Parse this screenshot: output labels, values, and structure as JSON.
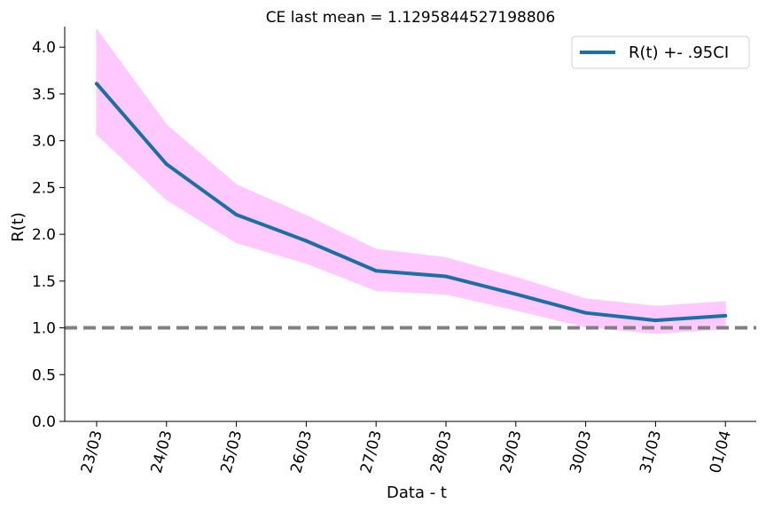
{
  "chart_data": {
    "type": "line",
    "title": "CE last mean = 1.1295844527198806",
    "xlabel": "Data - t",
    "ylabel": "R(t)",
    "categories": [
      "23/03",
      "24/03",
      "25/03",
      "26/03",
      "27/03",
      "28/03",
      "29/03",
      "30/03",
      "31/03",
      "01/04"
    ],
    "series": [
      {
        "name": "R(t) +- .95CI",
        "color": "#1a6fa8",
        "values": [
          3.61,
          2.75,
          2.21,
          1.93,
          1.61,
          1.55,
          1.36,
          1.16,
          1.08,
          1.13
        ],
        "ci_upper": [
          4.19,
          3.17,
          2.53,
          2.2,
          1.84,
          1.75,
          1.54,
          1.31,
          1.23,
          1.28
        ],
        "ci_lower": [
          3.07,
          2.37,
          1.91,
          1.69,
          1.4,
          1.36,
          1.19,
          1.01,
          0.94,
          0.99
        ],
        "ci_color": "#ffc8ff"
      }
    ],
    "reference_line": {
      "y": 1.0,
      "color": "#808080",
      "style": "dashed"
    },
    "ylim": [
      0,
      4.22
    ],
    "yticks": [
      "0.0",
      "0.5",
      "1.0",
      "1.5",
      "2.0",
      "2.5",
      "3.0",
      "3.5",
      "4.0"
    ],
    "ytick_values": [
      0,
      0.5,
      1.0,
      1.5,
      2.0,
      2.5,
      3.0,
      3.5,
      4.0
    ],
    "grid": false,
    "legend_position": "top-right"
  }
}
